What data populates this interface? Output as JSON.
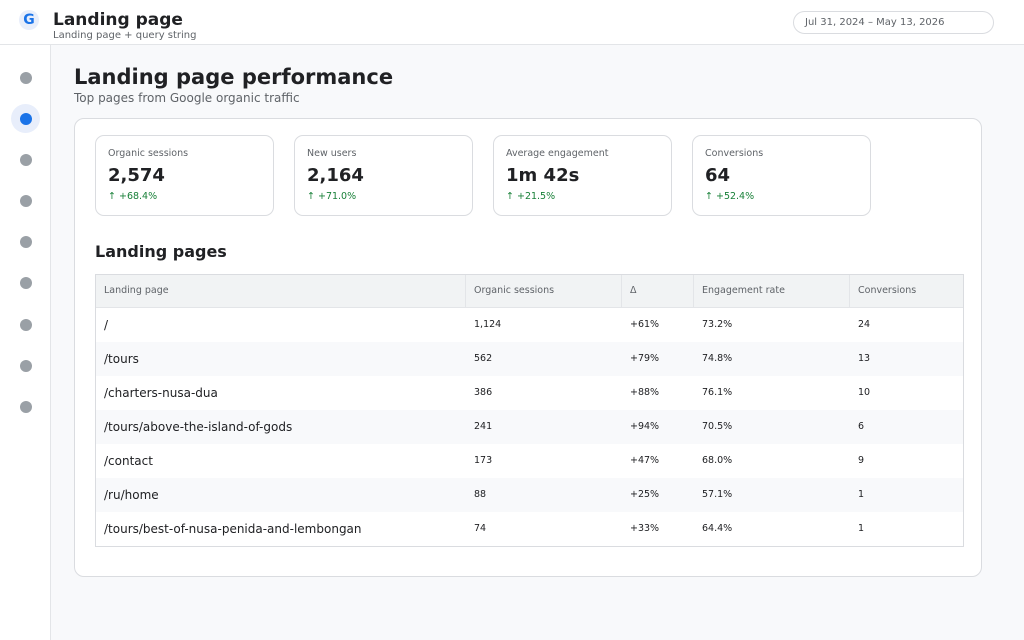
{
  "header": {
    "logo_letter": "G",
    "title": "Landing page",
    "subtitle": "Landing page + query string",
    "date_range": "Jul 31, 2024 – May 13, 2026"
  },
  "sidebar": {
    "items": [
      {
        "icon": "nav-icon",
        "active": false
      },
      {
        "icon": "nav-icon",
        "active": true
      },
      {
        "icon": "nav-icon",
        "active": false
      },
      {
        "icon": "nav-icon",
        "active": false
      },
      {
        "icon": "nav-icon",
        "active": false
      },
      {
        "icon": "nav-icon",
        "active": false
      },
      {
        "icon": "nav-icon",
        "active": false
      },
      {
        "icon": "nav-icon",
        "active": false
      },
      {
        "icon": "nav-icon",
        "active": false
      }
    ]
  },
  "main": {
    "title": "Landing page performance",
    "subtitle": "Top pages from Google organic traffic",
    "kpis": [
      {
        "label": "Organic sessions",
        "value": "2,574",
        "delta": "↑ +68.4%"
      },
      {
        "label": "New users",
        "value": "2,164",
        "delta": "↑ +71.0%"
      },
      {
        "label": "Average engagement",
        "value": "1m 42s",
        "delta": "↑ +21.5%"
      },
      {
        "label": "Conversions",
        "value": "64",
        "delta": "↑ +52.4%"
      }
    ],
    "table_title": "Landing pages",
    "table": {
      "columns": [
        "Landing page",
        "Organic sessions",
        "Δ",
        "Engagement rate",
        "Conversions"
      ],
      "rows": [
        [
          "/",
          "1,124",
          "+61%",
          "73.2%",
          "24"
        ],
        [
          "/tours",
          "562",
          "+79%",
          "74.8%",
          "13"
        ],
        [
          "/charters-nusa-dua",
          "386",
          "+88%",
          "76.1%",
          "10"
        ],
        [
          "/tours/above-the-island-of-gods",
          "241",
          "+94%",
          "70.5%",
          "6"
        ],
        [
          "/contact",
          "173",
          "+47%",
          "68.0%",
          "9"
        ],
        [
          "/ru/home",
          "88",
          "+25%",
          "57.1%",
          "1"
        ],
        [
          "/tours/best-of-nusa-penida-and-lembongan",
          "74",
          "+33%",
          "64.4%",
          "1"
        ]
      ]
    }
  },
  "colors": {
    "accent": "#1a73e8",
    "positive": "#188038",
    "inactive_icon": "#9aa0a6"
  }
}
